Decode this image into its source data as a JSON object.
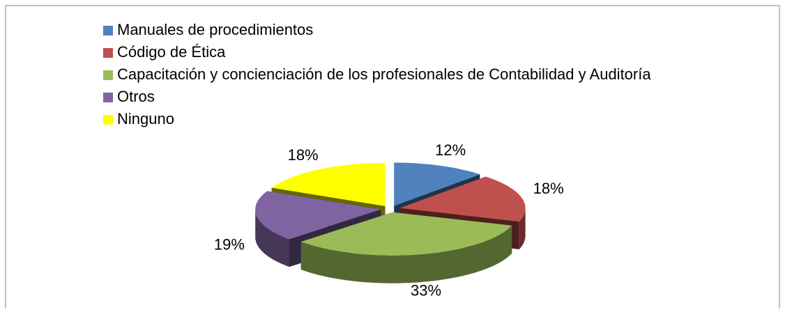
{
  "chart_data": {
    "type": "pie3d",
    "categories": [
      "Manuales de procedimientos",
      "Código de Ética",
      "Capacitación y concienciación de los profesionales de Contabilidad y Auditoría",
      "Otros",
      "Ninguno"
    ],
    "values": [
      12,
      18,
      33,
      19,
      18
    ],
    "value_labels": [
      "12%",
      "18%",
      "33%",
      "19%",
      "18%"
    ],
    "colors": [
      "#4f81bd",
      "#c0504d",
      "#9bbb59",
      "#8064a2",
      "#ffff00"
    ],
    "legend": "top-left"
  }
}
